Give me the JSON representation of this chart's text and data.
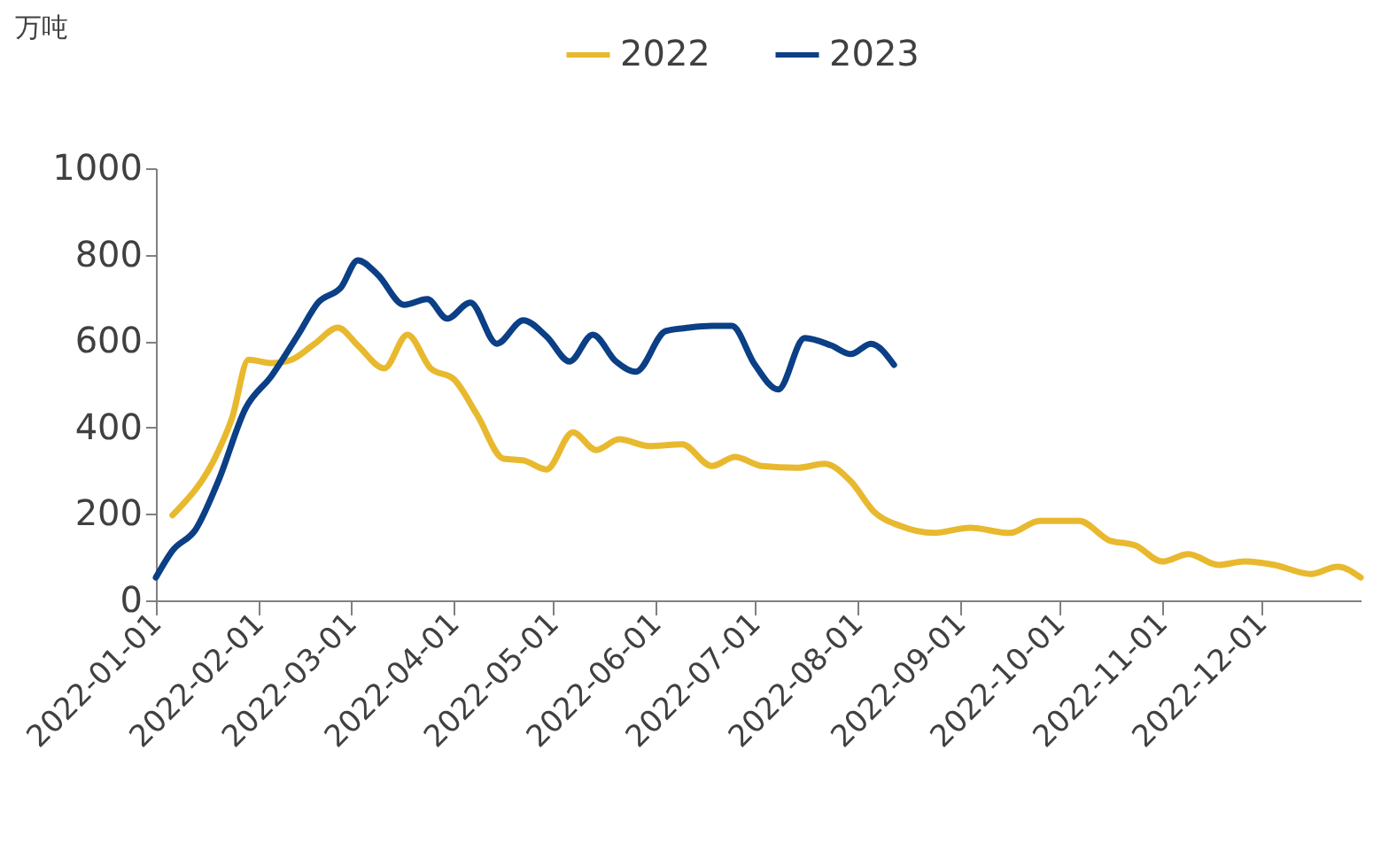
{
  "chart_data": {
    "type": "line",
    "ylabel": "万吨",
    "legend": "top",
    "xlim": [
      "2022-01-01",
      "2022-12-31"
    ],
    "xticks": [
      "2022-01-01",
      "2022-02-01",
      "2022-03-01",
      "2022-04-01",
      "2022-05-01",
      "2022-06-01",
      "2022-07-01",
      "2022-08-01",
      "2022-09-01",
      "2022-10-01",
      "2022-11-01",
      "2022-12-01"
    ],
    "ylim": [
      0,
      1000
    ],
    "yticks": [
      0,
      200,
      400,
      600,
      800,
      1000
    ],
    "grid": false,
    "series": [
      {
        "name": "2022",
        "color": "#e8b92e",
        "x": [
          "2022-01-06",
          "2022-01-20",
          "2022-01-24",
          "2022-01-29",
          "2022-02-05",
          "2022-02-11",
          "2022-02-18",
          "2022-02-25",
          "2022-03-03",
          "2022-03-11",
          "2022-03-18",
          "2022-03-25",
          "2022-04-01",
          "2022-04-08",
          "2022-04-16",
          "2022-04-22",
          "2022-04-29",
          "2022-05-07",
          "2022-05-14",
          "2022-05-21",
          "2022-05-30",
          "2022-06-09",
          "2022-06-18",
          "2022-06-25",
          "2022-07-03",
          "2022-07-14",
          "2022-07-22",
          "2022-07-30",
          "2022-08-06",
          "2022-08-14",
          "2022-08-24",
          "2022-09-04",
          "2022-09-16",
          "2022-09-25",
          "2022-10-07",
          "2022-10-16",
          "2022-10-24",
          "2022-11-01",
          "2022-11-09",
          "2022-11-18",
          "2022-11-26",
          "2022-12-05",
          "2022-12-16",
          "2022-12-24",
          "2022-12-31"
        ],
        "values": [
          197,
          348,
          422,
          557,
          549,
          557,
          594,
          631,
          590,
          537,
          615,
          537,
          512,
          430,
          328,
          324,
          303,
          389,
          348,
          373,
          357,
          361,
          311,
          332,
          311,
          307,
          316,
          275,
          205,
          172,
          156,
          168,
          156,
          184,
          184,
          139,
          127,
          90,
          107,
          82,
          90,
          82,
          61,
          78,
          53
        ]
      },
      {
        "name": "2023",
        "color": "#0b3f86",
        "x": [
          "2022-01-01",
          "2022-01-06",
          "2022-01-13",
          "2022-01-20",
          "2022-01-28",
          "2022-02-05",
          "2022-02-13",
          "2022-02-19",
          "2022-02-26",
          "2022-03-03",
          "2022-03-09",
          "2022-03-17",
          "2022-03-24",
          "2022-03-30",
          "2022-04-06",
          "2022-04-14",
          "2022-04-22",
          "2022-04-29",
          "2022-05-06",
          "2022-05-13",
          "2022-05-20",
          "2022-05-26",
          "2022-06-04",
          "2022-06-11",
          "2022-06-18",
          "2022-06-24",
          "2022-07-01",
          "2022-07-08",
          "2022-07-16",
          "2022-07-24",
          "2022-07-30",
          "2022-08-05",
          "2022-08-12"
        ],
        "values": [
          53,
          115,
          164,
          279,
          443,
          520,
          615,
          689,
          725,
          787,
          754,
          684,
          697,
          652,
          689,
          594,
          648,
          611,
          553,
          615,
          553,
          529,
          623,
          631,
          635,
          635,
          545,
          488,
          607,
          590,
          570,
          594,
          545
        ]
      }
    ]
  }
}
